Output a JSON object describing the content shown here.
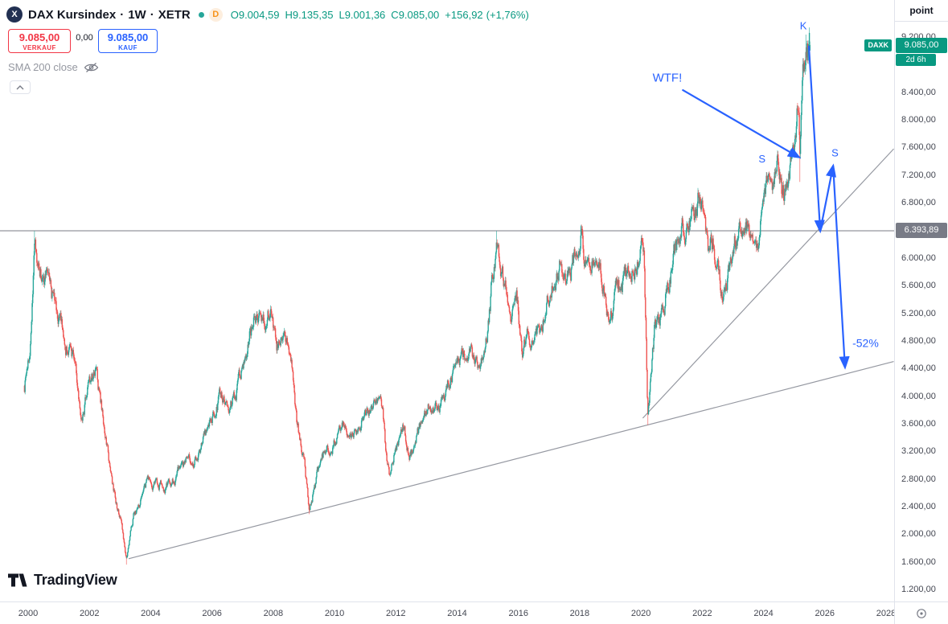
{
  "header": {
    "symbol_logo_letter": "X",
    "symbol_name": "DAX Kursindex",
    "separator": "·",
    "interval": "1W",
    "exchange": "XETR",
    "delayed_badge": "D",
    "ohlc": {
      "o_label": "O",
      "o": "9.004,59",
      "h_label": "H",
      "h": "9.135,35",
      "l_label": "L",
      "l": "9.001,36",
      "c_label": "C",
      "c": "9.085,00",
      "change": "+156,92",
      "change_pct": "(+1,76%)"
    }
  },
  "trade_panel": {
    "sell_price": "9.085,00",
    "sell_label": "VERKAUF",
    "spread": "0,00",
    "buy_price": "9.085,00",
    "buy_label": "KAUF"
  },
  "indicator_legend": {
    "label": "SMA 200 close"
  },
  "price_scale": {
    "unit_label": "point",
    "current": {
      "tag": "DAXK",
      "price": "9.085,00",
      "countdown": "2d 6h"
    },
    "level_badge": "6.393,89"
  },
  "footer_logo": {
    "text": "TradingView"
  },
  "ui_colors": {
    "sell": "#f23645",
    "buy": "#2962ff",
    "accent": "#089981",
    "text": "#131722",
    "muted": "#9598a1",
    "axis_text": "#434651",
    "border": "#e0e3eb",
    "badge_gray": "#787b86"
  },
  "chart_data": {
    "type": "candlestick",
    "instrument": "DAX Kursindex",
    "interval": "1W",
    "exchange": "XETR",
    "unit": "point",
    "x_axis": {
      "tick_values": [
        2000,
        2002,
        2004,
        2006,
        2008,
        2010,
        2012,
        2014,
        2016,
        2018,
        2020,
        2022,
        2024,
        2026,
        2028
      ],
      "tick_labels": [
        "2000",
        "2002",
        "2004",
        "2006",
        "2008",
        "2010",
        "2012",
        "2014",
        "2016",
        "2018",
        "2020",
        "2022",
        "2024",
        "2026",
        "2028"
      ],
      "range": [
        1999.85,
        2028.3
      ]
    },
    "y_axis": {
      "tick_values": [
        9200,
        8400,
        8000,
        7600,
        7200,
        6800,
        6000,
        5600,
        5200,
        4800,
        4400,
        4000,
        3600,
        3200,
        2800,
        2400,
        2000,
        1600,
        1200
      ],
      "tick_labels": [
        "9.200,00",
        "8.400,00",
        "8.000,00",
        "7.600,00",
        "7.200,00",
        "6.800,00",
        "6.000,00",
        "5.600,00",
        "5.200,00",
        "4.800,00",
        "4.400,00",
        "4.000,00",
        "3.600,00",
        "3.200,00",
        "2.800,00",
        "2.400,00",
        "2.000,00",
        "1.600,00",
        "1.200,00"
      ],
      "tick_step": 400,
      "range": [
        1130,
        9430
      ]
    },
    "last_candle": {
      "open": 9004.59,
      "high": 9135.35,
      "low": 9001.36,
      "close": 9085.0,
      "change": 156.92,
      "change_pct": 1.76
    },
    "level_line_price": 6393.89,
    "series_anchors": [
      [
        1999.88,
        4150
      ],
      [
        2000.05,
        4650
      ],
      [
        2000.2,
        6250
      ],
      [
        2000.45,
        5750
      ],
      [
        2000.75,
        5500
      ],
      [
        2001.0,
        5150
      ],
      [
        2001.3,
        4700
      ],
      [
        2001.55,
        4500
      ],
      [
        2001.72,
        3550
      ],
      [
        2001.95,
        4150
      ],
      [
        2002.2,
        4300
      ],
      [
        2002.5,
        3550
      ],
      [
        2002.75,
        2700
      ],
      [
        2003.0,
        2250
      ],
      [
        2003.2,
        1660
      ],
      [
        2003.45,
        2250
      ],
      [
        2003.7,
        2550
      ],
      [
        2004.0,
        2800
      ],
      [
        2004.3,
        2750
      ],
      [
        2004.6,
        2700
      ],
      [
        2005.0,
        2950
      ],
      [
        2005.5,
        3150
      ],
      [
        2005.9,
        3550
      ],
      [
        2006.3,
        4050
      ],
      [
        2006.5,
        3750
      ],
      [
        2006.8,
        4100
      ],
      [
        2007.0,
        4450
      ],
      [
        2007.35,
        5050
      ],
      [
        2007.55,
        5300
      ],
      [
        2007.75,
        5150
      ],
      [
        2007.95,
        5330
      ],
      [
        2008.1,
        4650
      ],
      [
        2008.35,
        4800
      ],
      [
        2008.6,
        4550
      ],
      [
        2008.78,
        3500
      ],
      [
        2009.0,
        3100
      ],
      [
        2009.17,
        2360
      ],
      [
        2009.45,
        2850
      ],
      [
        2009.7,
        3200
      ],
      [
        2010.0,
        3400
      ],
      [
        2010.3,
        3550
      ],
      [
        2010.5,
        3300
      ],
      [
        2010.8,
        3650
      ],
      [
        2011.1,
        3850
      ],
      [
        2011.4,
        3950
      ],
      [
        2011.58,
        3850
      ],
      [
        2011.68,
        3150
      ],
      [
        2011.8,
        2900
      ],
      [
        2012.0,
        3250
      ],
      [
        2012.25,
        3500
      ],
      [
        2012.45,
        3150
      ],
      [
        2012.7,
        3450
      ],
      [
        2013.0,
        3800
      ],
      [
        2013.35,
        3850
      ],
      [
        2013.7,
        4200
      ],
      [
        2014.0,
        4500
      ],
      [
        2014.4,
        4650
      ],
      [
        2014.75,
        4300
      ],
      [
        2015.0,
        4950
      ],
      [
        2015.28,
        6300
      ],
      [
        2015.5,
        5800
      ],
      [
        2015.75,
        5300
      ],
      [
        2015.95,
        5450
      ],
      [
        2016.1,
        4600
      ],
      [
        2016.35,
        4900
      ],
      [
        2016.5,
        4700
      ],
      [
        2016.75,
        5050
      ],
      [
        2017.0,
        5450
      ],
      [
        2017.35,
        5850
      ],
      [
        2017.7,
        5900
      ],
      [
        2018.04,
        6420
      ],
      [
        2018.2,
        5850
      ],
      [
        2018.42,
        6100
      ],
      [
        2018.65,
        5850
      ],
      [
        2018.95,
        5080
      ],
      [
        2019.2,
        5480
      ],
      [
        2019.5,
        5720
      ],
      [
        2019.9,
        6050
      ],
      [
        2020.1,
        6150
      ],
      [
        2020.22,
        3750
      ],
      [
        2020.45,
        4950
      ],
      [
        2020.65,
        5050
      ],
      [
        2020.85,
        5550
      ],
      [
        2021.0,
        5900
      ],
      [
        2021.3,
        6350
      ],
      [
        2021.6,
        6600
      ],
      [
        2021.85,
        6900
      ],
      [
        2022.05,
        6650
      ],
      [
        2022.2,
        6150
      ],
      [
        2022.35,
        6350
      ],
      [
        2022.55,
        5750
      ],
      [
        2022.72,
        5480
      ],
      [
        2023.0,
        6150
      ],
      [
        2023.3,
        6500
      ],
      [
        2023.55,
        6420
      ],
      [
        2023.78,
        6200
      ],
      [
        2024.0,
        6850
      ],
      [
        2024.25,
        7300
      ],
      [
        2024.45,
        7350
      ],
      [
        2024.6,
        6950
      ],
      [
        2024.78,
        7050
      ],
      [
        2024.92,
        7450
      ],
      [
        2025.05,
        7900
      ],
      [
        2025.13,
        8350
      ],
      [
        2025.19,
        7650
      ],
      [
        2025.28,
        8550
      ],
      [
        2025.38,
        9100
      ],
      [
        2025.47,
        8950
      ],
      [
        2025.53,
        9085
      ]
    ],
    "key_extremes": [
      {
        "t": 2000.2,
        "high": 6390
      },
      {
        "t": 2003.2,
        "low": 1560
      },
      {
        "t": 2009.17,
        "low": 2290
      },
      {
        "t": 2015.28,
        "high": 6390
      },
      {
        "t": 2018.04,
        "high": 6480
      },
      {
        "t": 2020.22,
        "low": 3580
      },
      {
        "t": 2025.19,
        "low": 7100
      },
      {
        "t": 2025.38,
        "high": 9235
      }
    ],
    "trend_lines": [
      {
        "from": [
          2003.28,
          1645
        ],
        "to": [
          2028.25,
          4500
        ]
      },
      {
        "from": [
          2020.06,
          3680
        ],
        "to": [
          2028.25,
          7580
        ]
      }
    ],
    "arrows": [
      {
        "from": [
          2021.37,
          8430
        ],
        "to": [
          2025.15,
          7460
        ]
      },
      {
        "from": [
          2025.48,
          9060
        ],
        "to": [
          2025.85,
          6395
        ]
      },
      {
        "from": [
          2025.85,
          6395
        ],
        "to": [
          2026.27,
          7330
        ]
      },
      {
        "from": [
          2026.27,
          7330
        ],
        "to": [
          2026.66,
          4420
        ]
      }
    ],
    "annotations": [
      {
        "text": "K",
        "t": 2025.3,
        "price": 9370,
        "size": 13,
        "anchor": "middle"
      },
      {
        "text": "S",
        "t": 2023.95,
        "price": 7440,
        "size": 13,
        "anchor": "middle"
      },
      {
        "text": "S",
        "t": 2026.33,
        "price": 7530,
        "size": 13,
        "anchor": "middle"
      },
      {
        "text": "WTF!",
        "t": 2020.38,
        "price": 8610,
        "size": 15,
        "anchor": "start"
      },
      {
        "text": "-52%",
        "t": 2026.9,
        "price": 4770,
        "size": 14,
        "anchor": "start"
      }
    ],
    "colors": {
      "up": "#26a69a",
      "down": "#ef5350",
      "trend_line": "#9598a1",
      "level_line": "#787b86",
      "annotation": "#2962ff"
    }
  }
}
